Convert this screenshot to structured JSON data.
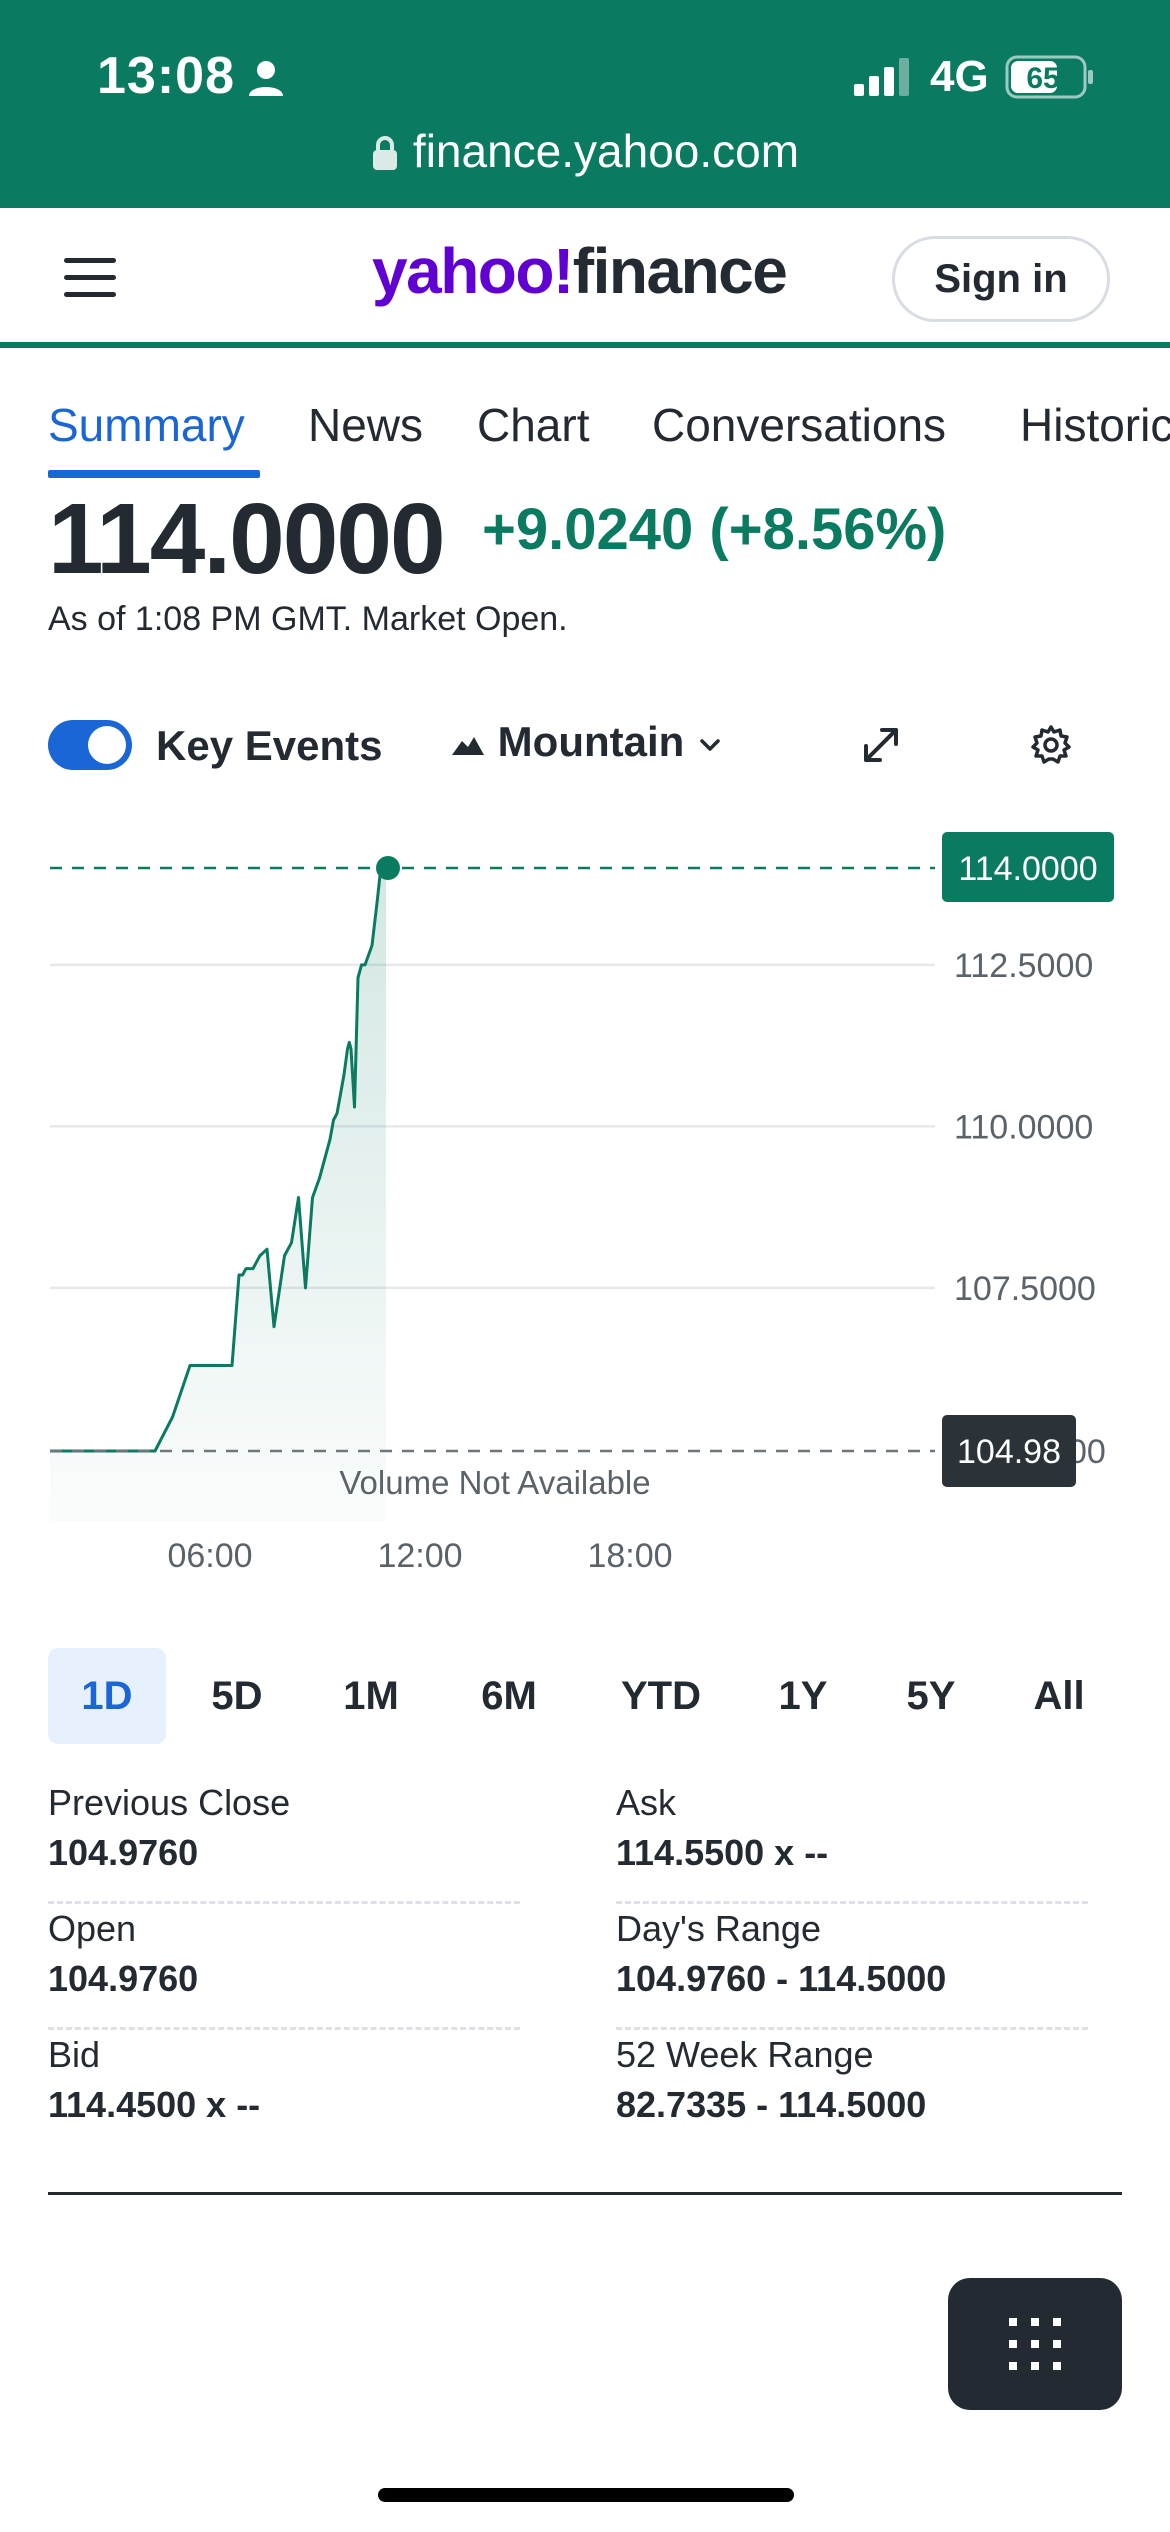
{
  "status_bar": {
    "time": "13:08",
    "network": "4G",
    "battery": "65",
    "url": "finance.yahoo.com"
  },
  "header": {
    "logo_part1": "yahoo!",
    "logo_part2": "finance",
    "sign_in": "Sign in"
  },
  "tabs": [
    "Summary",
    "News",
    "Chart",
    "Conversations",
    "Historical Data"
  ],
  "quote": {
    "price": "114.0000",
    "change": "+9.0240 (+8.56%)",
    "as_of": "As of 1:08 PM GMT. Market Open."
  },
  "controls": {
    "key_events": "Key Events",
    "chart_style": "Mountain"
  },
  "colors": {
    "brand_green": "#0a7b61",
    "accent_blue": "#1a66d6",
    "yahoo_purple": "#6001d2"
  },
  "chart_data": {
    "type": "area",
    "x_ticks": [
      "06:00",
      "12:00",
      "18:00"
    ],
    "y_ticks": [
      "112.5000",
      "110.0000",
      "107.5000"
    ],
    "current_label": "114.0000",
    "previous_close_label": "104.98",
    "hidden_tick_suffix": "00",
    "note": "Volume Not Available",
    "ylim": [
      104.976,
      114.0
    ],
    "series": [
      {
        "x": [
          0,
          1.5,
          3.0,
          3.5,
          4.0,
          4.4,
          4.6,
          4.7,
          5.0,
          5.2,
          5.4,
          5.5,
          5.6,
          5.8,
          6.0,
          6.2,
          6.4,
          6.7,
          6.9,
          7.1,
          7.3,
          7.5,
          7.7,
          7.8,
          7.9,
          8.0,
          8.1,
          8.2,
          8.3,
          8.4,
          8.5,
          8.55,
          8.6,
          8.7,
          8.8,
          8.9,
          9.0,
          9.2,
          9.35,
          9.45,
          9.5,
          9.6
        ],
        "y": [
          104.976,
          104.976,
          104.976,
          105.5,
          106.3,
          106.3,
          106.3,
          106.3,
          106.3,
          106.3,
          107.7,
          107.7,
          107.8,
          107.8,
          108.0,
          108.1,
          106.9,
          108.0,
          108.2,
          108.9,
          107.5,
          108.9,
          109.2,
          109.4,
          109.6,
          109.8,
          110.1,
          110.2,
          110.5,
          110.8,
          111.2,
          111.3,
          111.2,
          110.3,
          112.3,
          112.5,
          112.5,
          112.8,
          113.5,
          114.0,
          114.0,
          114.0
        ]
      }
    ]
  },
  "ranges": [
    "1D",
    "5D",
    "1M",
    "6M",
    "YTD",
    "1Y",
    "5Y",
    "All"
  ],
  "stats": {
    "previous_close": {
      "label": "Previous Close",
      "value": "104.9760"
    },
    "open": {
      "label": "Open",
      "value": "104.9760"
    },
    "bid": {
      "label": "Bid",
      "value": "114.4500 x --"
    },
    "ask": {
      "label": "Ask",
      "value": "114.5500 x --"
    },
    "days_range": {
      "label": "Day's Range",
      "value": "104.9760 - 114.5000"
    },
    "week52_range": {
      "label": "52 Week Range",
      "value": "82.7335 - 114.5000"
    }
  }
}
